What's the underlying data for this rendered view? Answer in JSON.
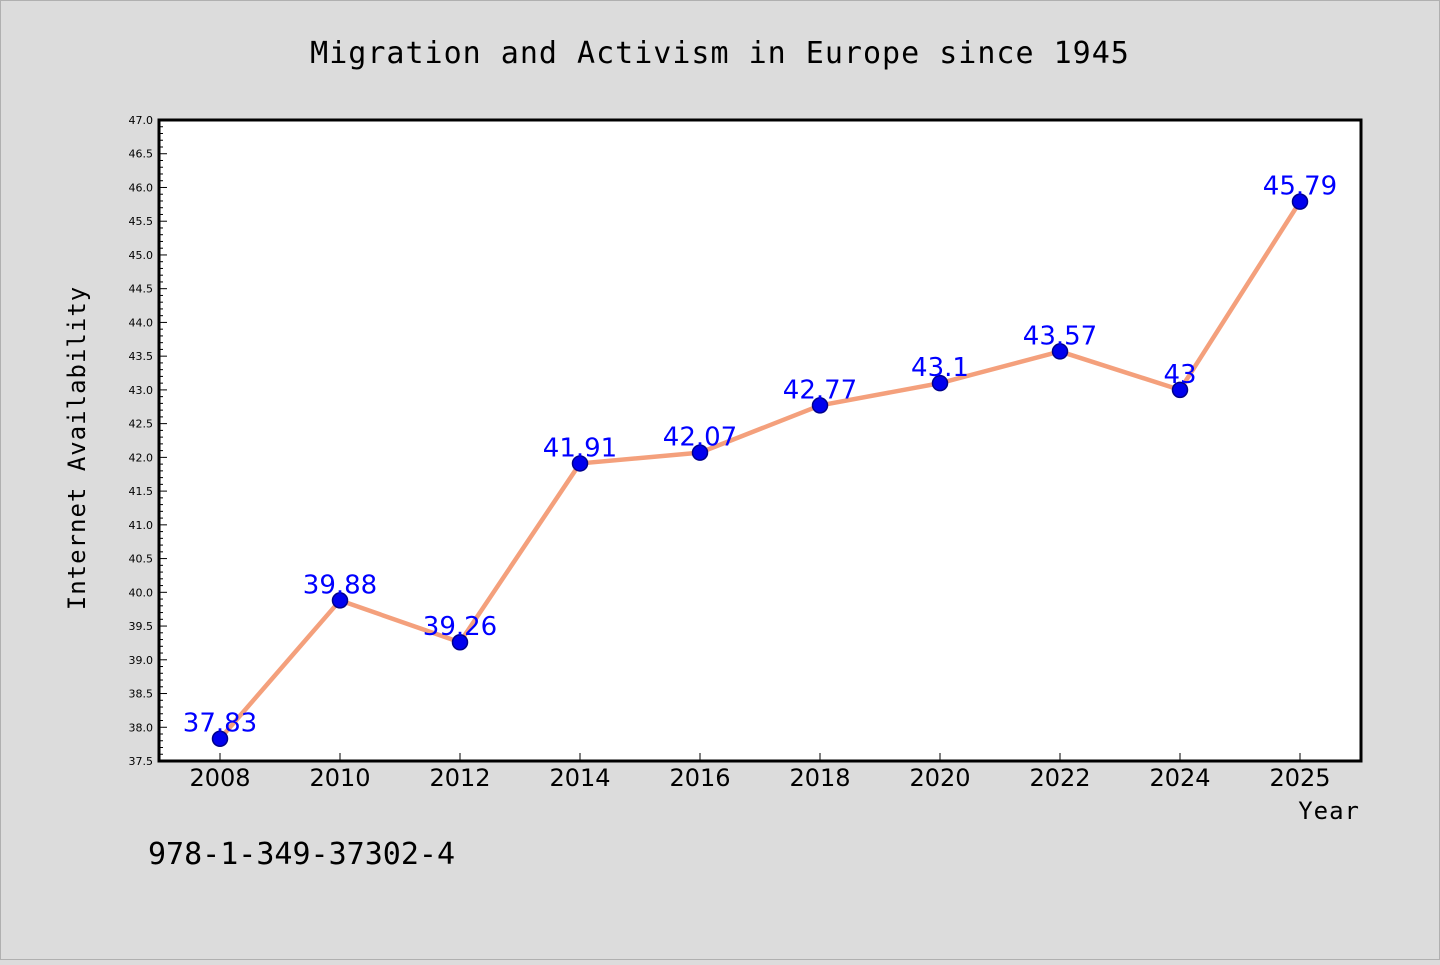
{
  "chart_data": {
    "type": "line",
    "title": "Migration and Activism in Europe since 1945",
    "xlabel": "Year",
    "ylabel": "Internet Availability",
    "categories": [
      "2008",
      "2010",
      "2012",
      "2014",
      "2016",
      "2018",
      "2020",
      "2022",
      "2024",
      "2025"
    ],
    "series": [
      {
        "values": [
          37.83,
          39.88,
          39.26,
          41.91,
          42.07,
          42.77,
          43.1,
          43.57,
          43,
          45.79
        ],
        "data_labels": [
          "37.83",
          "39.88",
          "39.26",
          "41.91",
          "42.07",
          "42.77",
          "43.1",
          "43.57",
          "43",
          "45.79"
        ]
      }
    ],
    "ylim": [
      37.5,
      47.0
    ],
    "yticks": [
      "37.5",
      "38.0",
      "38.5",
      "39.0",
      "39.5",
      "40.0",
      "40.5",
      "41.0",
      "41.5",
      "42.0",
      "42.5",
      "43.0",
      "43.5",
      "44.0",
      "44.5",
      "45.0",
      "45.5",
      "46.0",
      "46.5",
      "47.0"
    ],
    "grid": false,
    "colors": {
      "line": "#f4a07c",
      "marker": "#0000ee",
      "marker_edge": "#00008b",
      "data_label": "#0000ff",
      "page_background": "#dcdcdc",
      "plot_background": "#ffffff"
    }
  },
  "annotation": {
    "isbn": "978-1-349-37302-4"
  }
}
